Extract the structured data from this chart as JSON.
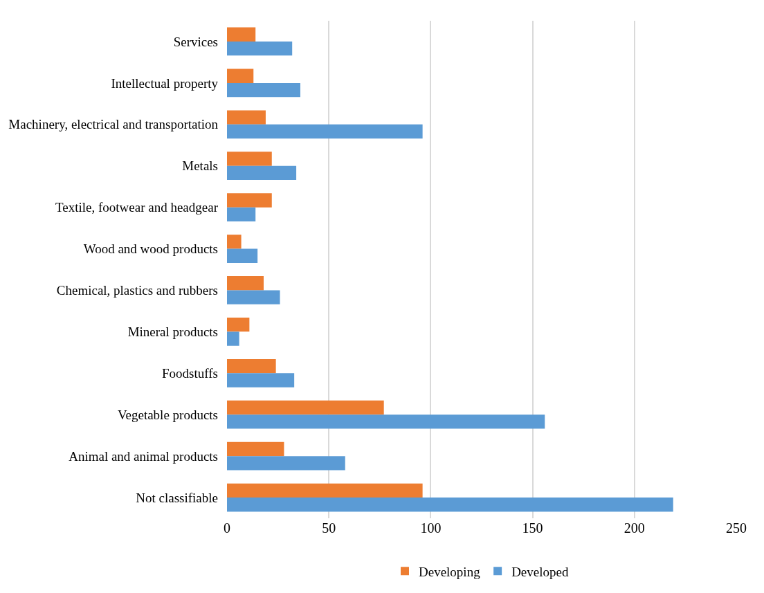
{
  "chart_data": {
    "type": "bar",
    "orientation": "horizontal",
    "categories": [
      "Services",
      "Intellectual property",
      "Machinery, electrical and transportation",
      "Metals",
      "Textile, footwear and headgear",
      "Wood and wood products",
      "Chemical, plastics and rubbers",
      "Mineral products",
      "Foodstuffs",
      "Vegetable products",
      "Animal and animal products",
      "Not classifiable"
    ],
    "series": [
      {
        "name": "Developing",
        "color": "#ed7d31",
        "values": [
          14,
          13,
          19,
          22,
          22,
          7,
          18,
          11,
          24,
          77,
          28,
          96
        ]
      },
      {
        "name": "Developed",
        "color": "#5b9bd5",
        "values": [
          32,
          36,
          96,
          34,
          14,
          15,
          26,
          6,
          33,
          156,
          58,
          219
        ]
      }
    ],
    "xlim": [
      0,
      250
    ],
    "xticks": [
      0,
      50,
      100,
      150,
      200,
      250
    ],
    "grid": "x",
    "legend": "bottom"
  }
}
